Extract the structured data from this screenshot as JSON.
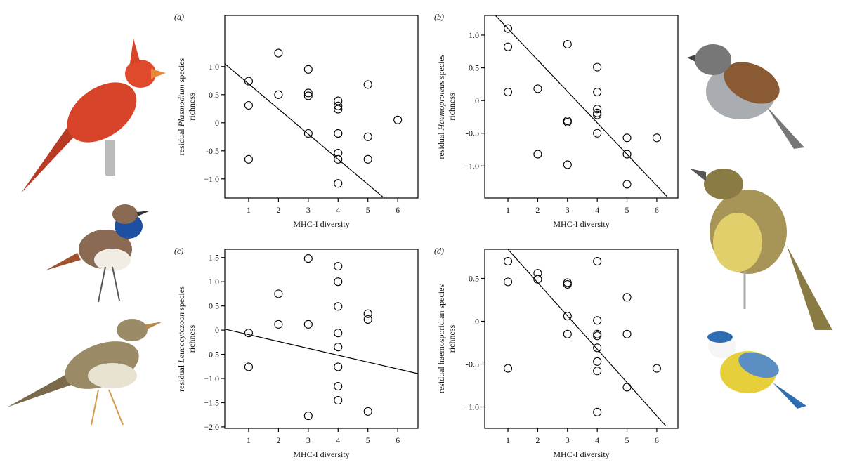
{
  "chart_data": [
    {
      "type": "scatter",
      "panel": "(a)",
      "xlabel": "MHC-I diversity",
      "ylabel": {
        "before": "residual",
        "italic": "Plasmodium",
        "after": "species",
        "line2": "richness"
      },
      "x": [
        1,
        1,
        1,
        2,
        2,
        3,
        3,
        3,
        3,
        4,
        4,
        4,
        4,
        4,
        4,
        4,
        4,
        5,
        5,
        5,
        6
      ],
      "values": [
        0.74,
        0.31,
        -0.65,
        1.24,
        0.5,
        0.95,
        0.53,
        0.48,
        -0.19,
        0.39,
        0.3,
        0.24,
        -0.19,
        -0.19,
        -0.54,
        -0.65,
        -1.08,
        0.68,
        -0.25,
        -0.65,
        0.05
      ],
      "fit_line": {
        "x": [
          0.2,
          5.5
        ],
        "y": [
          1.05,
          -1.32
        ]
      },
      "xlim": [
        0.2,
        6.68
      ],
      "ylim": [
        -1.34,
        1.91
      ],
      "xticks": [
        1,
        2,
        3,
        4,
        5,
        6
      ],
      "yticks": [
        {
          "value": 1,
          "label": "1.0"
        },
        0.5,
        0,
        -0.5,
        {
          "value": -1,
          "label": "−1.0"
        }
      ]
    },
    {
      "type": "scatter",
      "panel": "(b)",
      "xlabel": "MHC-I diversity",
      "ylabel": {
        "before": "residual",
        "italic": "Haemoproteus",
        "after": "species",
        "line2": "richness"
      },
      "x": [
        1,
        1,
        1,
        2,
        2,
        3,
        3,
        3,
        3,
        4,
        4,
        4,
        4,
        4,
        4,
        5,
        5,
        5,
        6
      ],
      "values": [
        1.1,
        0.82,
        0.13,
        0.18,
        -0.82,
        0.86,
        -0.31,
        -0.33,
        -0.98,
        0.51,
        0.13,
        -0.13,
        -0.19,
        -0.22,
        -0.5,
        -0.57,
        -0.82,
        -1.28,
        -0.57
      ],
      "fit_line": {
        "x": [
          0.58,
          6.35
        ],
        "y": [
          1.3,
          -1.47
        ]
      },
      "xlim": [
        0.22,
        6.71
      ],
      "ylim": [
        -1.49,
        1.3
      ],
      "xticks": [
        1,
        2,
        3,
        4,
        5,
        6
      ],
      "yticks": [
        {
          "value": 1,
          "label": "1.0"
        },
        0.5,
        0,
        -0.5,
        {
          "value": -1,
          "label": "−1.0"
        }
      ]
    },
    {
      "type": "scatter",
      "panel": "(c)",
      "xlabel": "MHC-I diversity",
      "ylabel": {
        "before": "residual",
        "italic": "Leucocytozoon",
        "after": "species",
        "line2": "richness"
      },
      "x": [
        1,
        1,
        2,
        2,
        3,
        3,
        3,
        4,
        4,
        4,
        4,
        4,
        4,
        4,
        4,
        5,
        5,
        5
      ],
      "values": [
        -0.06,
        -0.76,
        0.75,
        0.12,
        1.48,
        0.12,
        -1.77,
        1.32,
        1.0,
        0.49,
        -0.06,
        -0.35,
        -0.76,
        -1.16,
        -1.45,
        0.34,
        0.22,
        -1.68
      ],
      "fit_line": {
        "x": [
          0.2,
          6.68
        ],
        "y": [
          0.02,
          -0.9
        ]
      },
      "xlim": [
        0.2,
        6.68
      ],
      "ylim": [
        -2.03,
        1.67
      ],
      "xticks": [
        1,
        2,
        3,
        4,
        5,
        6
      ],
      "yticks": [
        1.5,
        {
          "value": 1,
          "label": "1.0"
        },
        0.5,
        0,
        -0.5,
        {
          "value": -1,
          "label": "−1.0"
        },
        {
          "value": -1.5,
          "label": "−1.5"
        },
        {
          "value": -2,
          "label": "−2.0"
        }
      ]
    },
    {
      "type": "scatter",
      "panel": "(d)",
      "xlabel": "MHC-I diversity",
      "ylabel": {
        "before": "residual haemosporidian species",
        "line2": "richness"
      },
      "x": [
        1,
        1,
        1,
        2,
        2,
        3,
        3,
        3,
        3,
        4,
        4,
        4,
        4,
        4,
        4,
        4,
        4,
        5,
        5,
        5,
        6
      ],
      "values": [
        0.7,
        0.46,
        -0.55,
        0.56,
        0.49,
        0.45,
        0.43,
        0.06,
        -0.15,
        0.7,
        0.01,
        -0.15,
        -0.17,
        -0.31,
        -0.47,
        -0.58,
        -1.06,
        0.28,
        -0.15,
        -0.77,
        -0.55
      ],
      "fit_line": {
        "x": [
          1.0,
          6.3
        ],
        "y": [
          0.84,
          -1.22
        ]
      },
      "xlim": [
        0.22,
        6.71
      ],
      "ylim": [
        -1.25,
        0.84
      ],
      "xticks": [
        1,
        2,
        3,
        4,
        5,
        6
      ],
      "yticks": [
        0.5,
        0,
        -0.5,
        {
          "value": -1,
          "label": "−1.0"
        }
      ]
    }
  ]
}
